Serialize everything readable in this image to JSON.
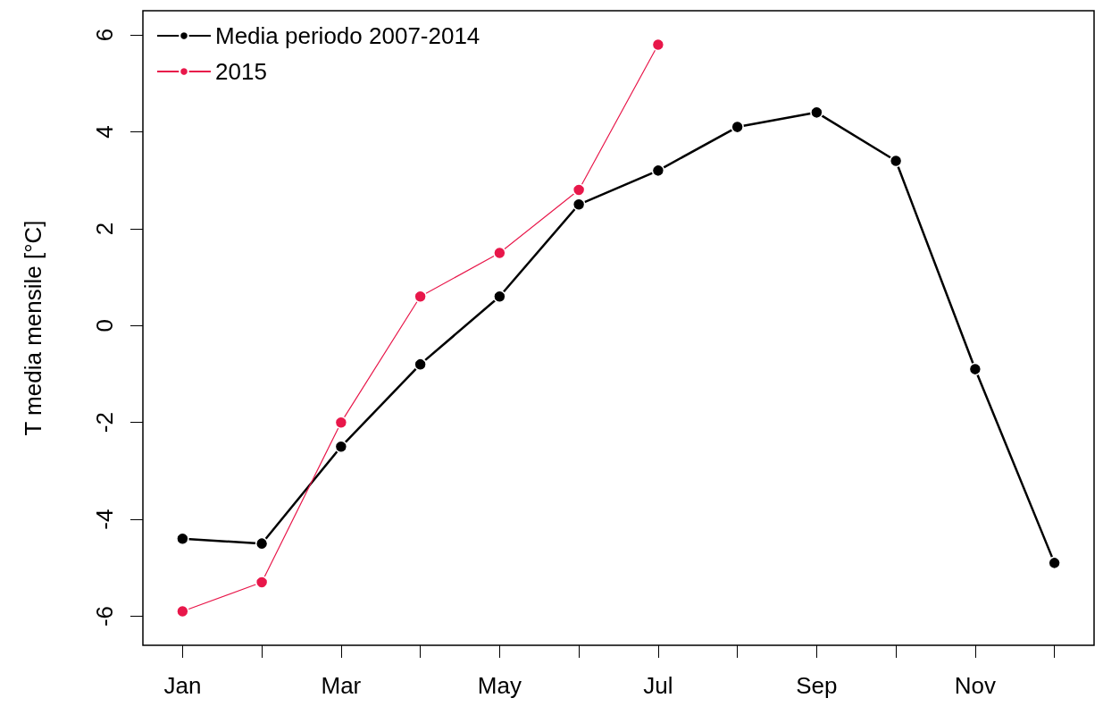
{
  "chart_data": {
    "type": "line",
    "ylabel": "T media mensile [°C]",
    "categories": [
      "Jan",
      null,
      "Mar",
      null,
      "May",
      null,
      "Jul",
      null,
      "Sep",
      null,
      "Nov",
      null
    ],
    "series": [
      {
        "name": "Media periodo 2007-2014",
        "color": "#000000",
        "values": [
          -4.4,
          -4.5,
          -2.5,
          -0.8,
          0.6,
          2.5,
          3.2,
          4.1,
          4.4,
          3.4,
          -0.9,
          -4.9
        ]
      },
      {
        "name": "2015",
        "color": "#e8174a",
        "values": [
          -5.9,
          -5.3,
          -2.0,
          0.6,
          1.5,
          2.8,
          5.8,
          null,
          null,
          null,
          null,
          null
        ]
      }
    ],
    "ylim": [
      -6.6,
      6.5
    ],
    "yticks": [
      -6,
      -4,
      -2,
      0,
      2,
      4,
      6
    ],
    "grid": false,
    "legend": "top left",
    "marker": "circle",
    "line_style": "solid"
  }
}
